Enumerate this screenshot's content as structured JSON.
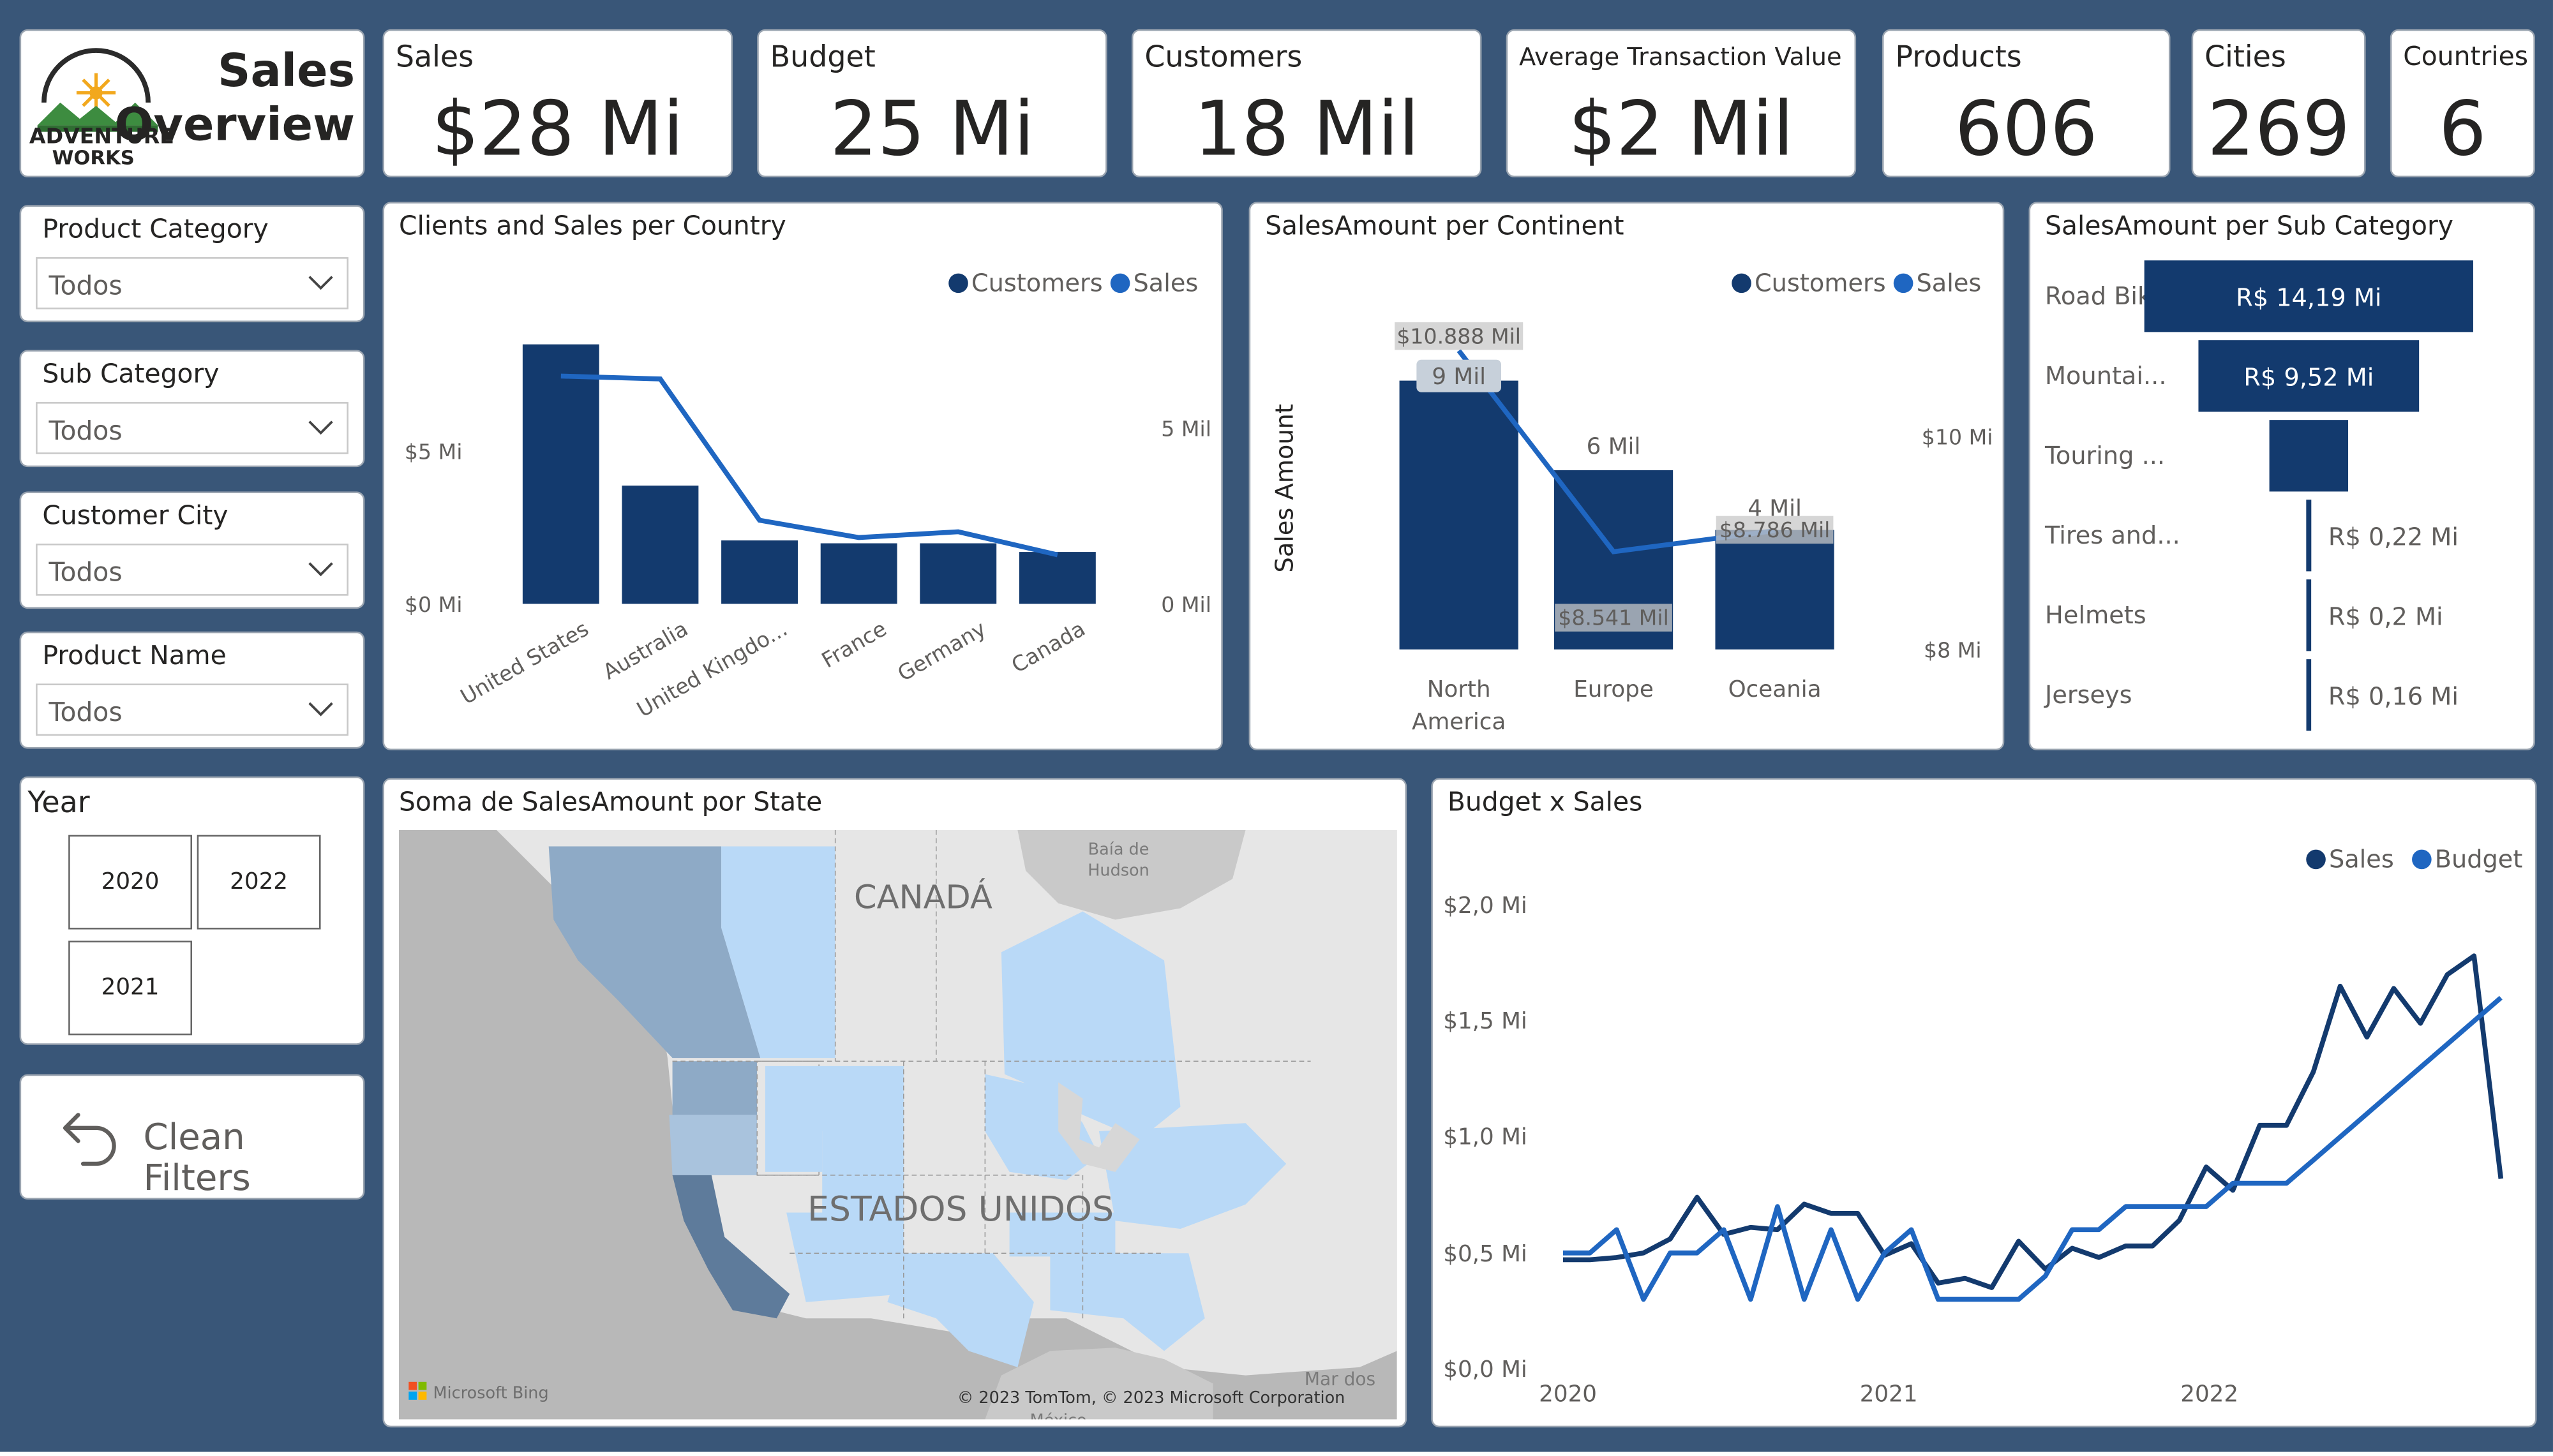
{
  "logo": {
    "line1": "ADVENTURE",
    "line2": "WORKS"
  },
  "header": {
    "title_line1": "Sales",
    "title_line2": "Overview"
  },
  "kpis": {
    "sales": {
      "label": "Sales",
      "value": "$28 Mi"
    },
    "budget": {
      "label": "Budget",
      "value": "25 Mi"
    },
    "customers": {
      "label": "Customers",
      "value": "18 Mil"
    },
    "avg_transaction": {
      "label": "Average Transaction Value",
      "value": "$2 Mil"
    },
    "products": {
      "label": "Products",
      "value": "606"
    },
    "cities": {
      "label": "Cities",
      "value": "269"
    },
    "countries": {
      "label": "Countries",
      "value": "6"
    }
  },
  "filters": {
    "product_category": {
      "label": "Product Category",
      "value": "Todos"
    },
    "sub_category": {
      "label": "Sub Category",
      "value": "Todos"
    },
    "customer_city": {
      "label": "Customer City",
      "value": "Todos"
    },
    "product_name": {
      "label": "Product Name",
      "value": "Todos"
    },
    "year": {
      "label": "Year",
      "options": [
        "2020",
        "2022",
        "2021"
      ]
    },
    "clean_filters_label": "Clean Filters"
  },
  "map": {
    "title": "Soma de SalesAmount por State",
    "labels": {
      "canada": "CANADÁ",
      "usa": "ESTADOS UNIDOS",
      "hudson_line1": "Baía de",
      "hudson_line2": "Hudson",
      "mexico_sea": "Mar dos",
      "mexico": "México"
    },
    "attribution": "© 2023 TomTom, © 2023 Microsoft Corporation",
    "provider": "Microsoft Bing"
  },
  "colors": {
    "dark_navy": "#133a6e",
    "bright_blue": "#1f66c1",
    "map_light": "#b9d9f7",
    "map_mid": "#8eaac6",
    "map_dark": "#5e7b9b",
    "background": "#395678"
  },
  "chart_data": [
    {
      "type": "bar",
      "title": "Clients and Sales per Country",
      "legend": [
        "Customers",
        "Sales"
      ],
      "legend_position": "top-right",
      "categories": [
        "United States",
        "Australia",
        "United Kingdo...",
        "France",
        "Germany",
        "Canada"
      ],
      "series": [
        {
          "name": "Customers",
          "kind": "bar",
          "values": [
            9.0,
            4.1,
            2.2,
            2.1,
            2.1,
            1.8
          ]
        },
        {
          "name": "Sales",
          "kind": "line",
          "values": [
            7.9,
            7.8,
            2.9,
            2.3,
            2.5,
            1.7
          ]
        }
      ],
      "left_axis_ticks": [
        "$5 Mi",
        "$0 Mi"
      ],
      "right_axis_ticks": [
        "5 Mil",
        "0 Mil"
      ]
    },
    {
      "type": "bar",
      "title": "SalesAmount per Continent",
      "legend": [
        "Customers",
        "Sales"
      ],
      "legend_position": "top-right",
      "ylabel": "Sales Amount",
      "categories": [
        "North America",
        "Europe",
        "Oceania"
      ],
      "series": [
        {
          "name": "Customers",
          "kind": "bar",
          "values": [
            9,
            6,
            4
          ],
          "labels": [
            "9 Mil",
            "6 Mil",
            "4 Mil"
          ]
        },
        {
          "name": "Sales",
          "kind": "line",
          "values": [
            10.888,
            8.541,
            8.786
          ],
          "labels": [
            "$10.888 Mil",
            "$8.541 Mil",
            "$8.786 Mil"
          ]
        }
      ],
      "right_axis_ticks": [
        "$10 Mi",
        "$8 Mi"
      ]
    },
    {
      "type": "bar",
      "title": "SalesAmount per Sub Category",
      "categories": [
        "Road Bikes",
        "Mountai...",
        "Touring ...",
        "Tires and...",
        "Helmets",
        "Jerseys"
      ],
      "values": [
        14.19,
        9.52,
        3.4,
        0.22,
        0.2,
        0.16
      ],
      "value_labels": [
        "R$ 14,19 Mi",
        "R$ 9,52 Mi",
        "",
        "R$ 0,22 Mi",
        "R$ 0,2 Mi",
        "R$ 0,16 Mi"
      ]
    },
    {
      "type": "line",
      "title": "Budget x Sales",
      "legend": [
        "Sales",
        "Budget"
      ],
      "legend_position": "top-right",
      "y_ticks": [
        "$2,0 Mi",
        "$1,5 Mi",
        "$1,0 Mi",
        "$0,5 Mi",
        "$0,0 Mi"
      ],
      "x_ticks": [
        "2020",
        "2021",
        "2022"
      ],
      "ylim": [
        0,
        2.0
      ],
      "series": [
        {
          "name": "Sales",
          "values": [
            0.47,
            0.47,
            0.48,
            0.5,
            0.56,
            0.74,
            0.58,
            0.61,
            0.6,
            0.71,
            0.67,
            0.67,
            0.49,
            0.54,
            0.37,
            0.39,
            0.35,
            0.55,
            0.43,
            0.52,
            0.48,
            0.53,
            0.53,
            0.64,
            0.87,
            0.77,
            1.05,
            1.05,
            1.28,
            1.65,
            1.43,
            1.64,
            1.49,
            1.7,
            1.78,
            0.82
          ]
        },
        {
          "name": "Budget",
          "values": [
            0.5,
            0.5,
            0.6,
            0.3,
            0.5,
            0.5,
            0.6,
            0.3,
            0.7,
            0.3,
            0.6,
            0.3,
            0.5,
            0.6,
            0.3,
            0.3,
            0.3,
            0.3,
            0.4,
            0.6,
            0.6,
            0.7,
            0.7,
            0.7,
            0.7,
            0.8,
            0.8,
            0.8,
            0.9,
            1.0,
            1.1,
            1.2,
            1.3,
            1.4,
            1.5,
            1.6
          ]
        }
      ]
    }
  ]
}
